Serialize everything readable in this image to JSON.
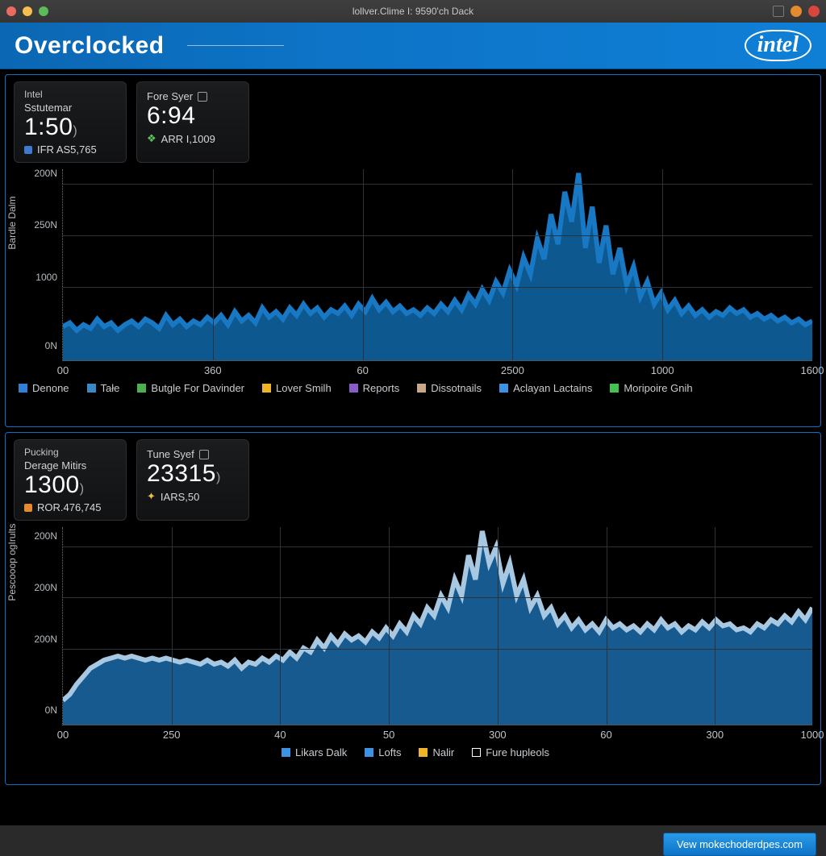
{
  "window": {
    "title": "lollver.Clime I: 9590'ch Dack"
  },
  "banner": {
    "title": "Overclocked",
    "logo_text": "intel"
  },
  "colors": {
    "accent": "#0d74c7",
    "panel_border": "#0d6fc0",
    "grid": "#2e3236",
    "axis_text": "#b7bcc1",
    "chart_fill": "#0f5f9c",
    "chart_fill2": "#19629c",
    "chart_stroke": "#6fb7ef",
    "traffic_red": "#ec6a5e",
    "traffic_yellow": "#f5be4f",
    "traffic_green": "#5dba58",
    "tb_orange": "#e28b2f",
    "tb_red": "#d9463d"
  },
  "panel1": {
    "cardA": {
      "line1": "Intel",
      "line2": "Sstutemar",
      "big": "1:50",
      "big_suffix": ")",
      "foot_sq_color": "#3d7bd0",
      "foot": "IFR AS5,765"
    },
    "cardB": {
      "line2": "Fore Syer",
      "big": "6:94",
      "foot_icon_color": "#5cc85c",
      "foot": "ARR I,1009"
    },
    "chart": {
      "type": "area",
      "y_label": "Bardle Dalm",
      "y_ticks": [
        {
          "label": "200N",
          "pos": 0.92
        },
        {
          "label": "250N",
          "pos": 0.65
        },
        {
          "label": "1000",
          "pos": 0.38
        },
        {
          "label": "0N",
          "pos": 0.02
        }
      ],
      "x_ticks": [
        {
          "label": "00",
          "pos": 0.0
        },
        {
          "label": "360",
          "pos": 0.2
        },
        {
          "label": "60",
          "pos": 0.4
        },
        {
          "label": "2500",
          "pos": 0.6
        },
        {
          "label": "1000",
          "pos": 0.8
        },
        {
          "label": "1600",
          "pos": 1.0
        }
      ],
      "hgrid_pos": [
        0.92,
        0.65,
        0.38
      ],
      "vgrid_pos": [
        0.2,
        0.4,
        0.6,
        0.8
      ],
      "fill_color": "#0f5f9c",
      "stroke_color": "#1878c4",
      "data": [
        18,
        20,
        16,
        19,
        17,
        22,
        18,
        20,
        16,
        19,
        21,
        18,
        22,
        20,
        17,
        24,
        19,
        22,
        18,
        21,
        19,
        23,
        20,
        24,
        19,
        26,
        21,
        24,
        20,
        28,
        23,
        26,
        22,
        28,
        24,
        30,
        25,
        28,
        23,
        27,
        25,
        29,
        24,
        30,
        26,
        33,
        27,
        31,
        26,
        29,
        25,
        27,
        24,
        28,
        25,
        30,
        26,
        32,
        27,
        35,
        30,
        38,
        32,
        42,
        36,
        48,
        40,
        55,
        46,
        65,
        54,
        78,
        62,
        90,
        74,
        100,
        60,
        82,
        52,
        72,
        46,
        60,
        40,
        50,
        34,
        42,
        30,
        36,
        27,
        32,
        25,
        29,
        24,
        27,
        23,
        26,
        24,
        28,
        25,
        27,
        23,
        25,
        22,
        24,
        21,
        23,
        20,
        22,
        19,
        21
      ]
    },
    "legend": [
      {
        "color": "#2f80d6",
        "label": "Denone"
      },
      {
        "color": "#3a88c4",
        "label": "Tałe"
      },
      {
        "color": "#4caf50",
        "label": "Butgle For Davinder"
      },
      {
        "color": "#f0b429",
        "label": "Lover Smilh"
      },
      {
        "color": "#8a5cc9",
        "label": "Reports"
      },
      {
        "color": "#c9a88a",
        "label": "Dissotnails"
      },
      {
        "color": "#3e92e2",
        "label": "Aclayan Lactains"
      },
      {
        "color": "#45c153",
        "label": "Moripoire Gnih"
      }
    ]
  },
  "panel2": {
    "cardA": {
      "line1": "Pucking",
      "line2": "Derage Mitirs",
      "big": "1300",
      "big_suffix": ")",
      "foot_sq_color": "#e68a2e",
      "foot": "ROR.476,745"
    },
    "cardB": {
      "line2": "Tune Syef",
      "big": "23315",
      "big_suffix": ")",
      "foot_icon_color": "#e6c24a",
      "foot": "IARS,50"
    },
    "chart": {
      "type": "area",
      "y_label": "Pescooop ogIrults",
      "y_ticks": [
        {
          "label": "200N",
          "pos": 0.9
        },
        {
          "label": "200N",
          "pos": 0.64
        },
        {
          "label": "200N",
          "pos": 0.38
        },
        {
          "label": "0N",
          "pos": 0.02
        }
      ],
      "x_ticks": [
        {
          "label": "00",
          "pos": 0.0
        },
        {
          "label": "250",
          "pos": 0.145
        },
        {
          "label": "40",
          "pos": 0.29
        },
        {
          "label": "50",
          "pos": 0.435
        },
        {
          "label": "300",
          "pos": 0.58
        },
        {
          "label": "60",
          "pos": 0.725
        },
        {
          "label": "300",
          "pos": 0.87
        },
        {
          "label": "1000",
          "pos": 1.0
        }
      ],
      "hgrid_pos": [
        0.9,
        0.64,
        0.38
      ],
      "vgrid_pos": [
        0.145,
        0.29,
        0.435,
        0.58,
        0.725,
        0.87
      ],
      "fill_color": "#19629c",
      "stroke_color": "#a8c7e0",
      "data": [
        12,
        15,
        20,
        24,
        28,
        30,
        32,
        33,
        34,
        33,
        34,
        33,
        32,
        33,
        32,
        33,
        32,
        31,
        32,
        31,
        30,
        32,
        30,
        31,
        29,
        32,
        28,
        31,
        30,
        33,
        31,
        34,
        32,
        36,
        33,
        38,
        36,
        42,
        38,
        44,
        40,
        45,
        42,
        44,
        41,
        46,
        43,
        48,
        44,
        50,
        46,
        54,
        50,
        58,
        54,
        64,
        58,
        72,
        64,
        84,
        72,
        96,
        80,
        88,
        70,
        80,
        64,
        72,
        58,
        64,
        54,
        58,
        50,
        54,
        48,
        52,
        47,
        50,
        46,
        52,
        48,
        50,
        47,
        49,
        46,
        50,
        47,
        52,
        48,
        50,
        46,
        49,
        47,
        51,
        48,
        52,
        49,
        50,
        47,
        48,
        46,
        50,
        48,
        52,
        50,
        54,
        51,
        56,
        52,
        58
      ]
    },
    "legend": [
      {
        "color": "#3e92e2",
        "label": "Likars Dalk"
      },
      {
        "color": "#3e92e2",
        "label": "Lofts"
      },
      {
        "color": "#f0b429",
        "label": "Nalir"
      },
      {
        "color": "#ffffff",
        "label": "Fure hupleols",
        "outline": true
      }
    ]
  },
  "footer": {
    "button": "Vew mokechoderdpes.com"
  }
}
